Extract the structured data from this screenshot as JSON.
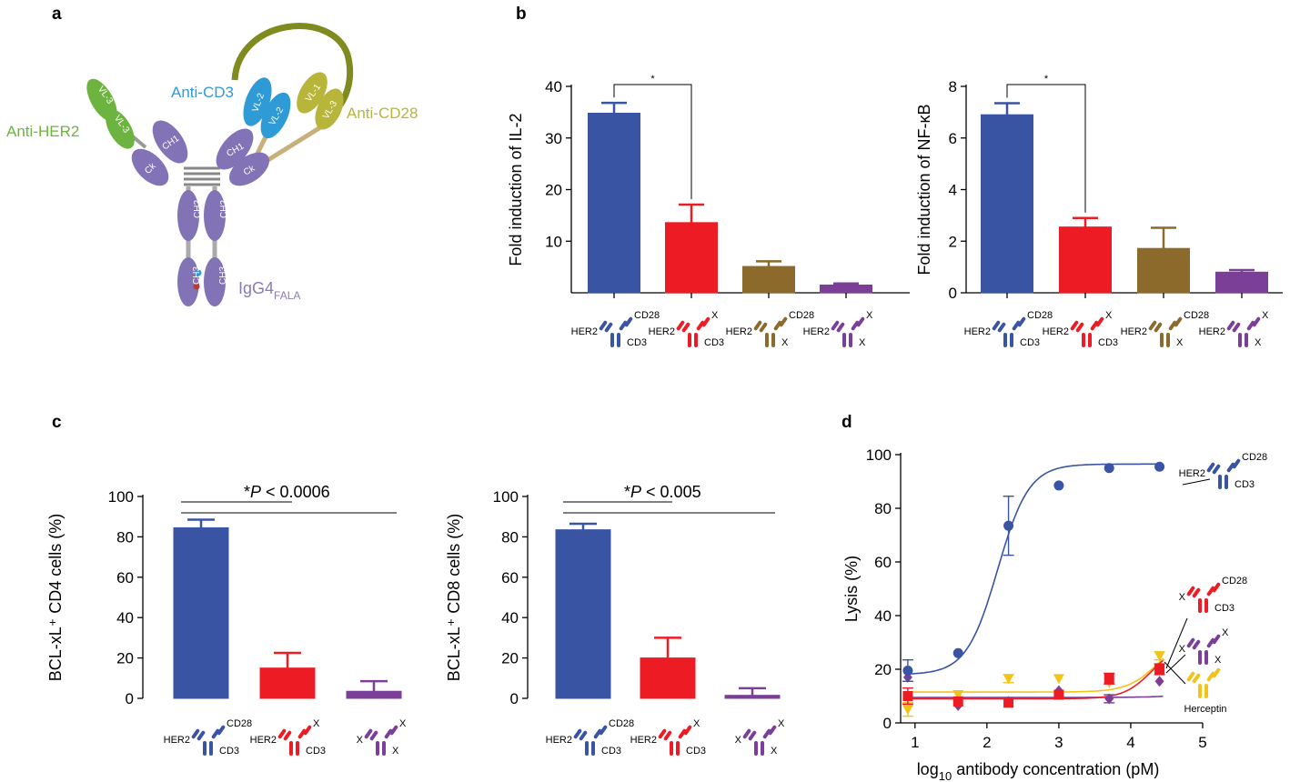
{
  "panel_labels": {
    "a": "a",
    "b": "b",
    "c": "c",
    "d": "d"
  },
  "colors": {
    "blue": "#3a54a4",
    "red": "#ed1c24",
    "brown": "#8b6a2b",
    "purple": "#7b3f98",
    "yellow": "#f2c418",
    "green": "#6db33f",
    "lightblue": "#2f9bd6",
    "olive": "#b7b53a",
    "domain": "#8173b5",
    "ig_label": "#8a7ab8"
  },
  "schematic": {
    "anti_her2": "Anti-HER2",
    "anti_cd3": "Anti-CD3",
    "anti_cd28": "Anti-CD28",
    "igg4_main": "IgG4",
    "igg4_sub": "FALA",
    "domains": {
      "vl3": "VL-3",
      "ch1": "CH1",
      "ck": "Ck",
      "vl2": "VL-2",
      "vl1": "VL-1",
      "ch2": "CH2",
      "ch3": "CH3"
    }
  },
  "legend_icons": {
    "her2": "HER2",
    "cd28": "CD28",
    "cd3": "CD3",
    "x": "X",
    "herceptin": "Herceptin"
  },
  "chart_data": [
    {
      "id": "il2",
      "type": "bar",
      "panel": "b",
      "ylabel": "Fold induction of IL-2",
      "ylim": [
        0,
        40
      ],
      "yticks": [
        10,
        20,
        30,
        40
      ],
      "categories": [
        "HER2/CD28/CD3",
        "HER2/X/CD3",
        "HER2/CD28/X",
        "HER2/X/X"
      ],
      "values": [
        34.8,
        13.6,
        5.1,
        1.5
      ],
      "errors": [
        2.0,
        3.5,
        1.0,
        0.3
      ],
      "bar_colors": [
        "#3a54a4",
        "#ed1c24",
        "#8b6a2b",
        "#7b3f98"
      ],
      "significance": "*"
    },
    {
      "id": "nfkb",
      "type": "bar",
      "panel": "b",
      "ylabel": "Fold induction of NF-κB",
      "ylim": [
        0,
        8
      ],
      "yticks": [
        0,
        2,
        4,
        6,
        8
      ],
      "categories": [
        "HER2/CD28/CD3",
        "HER2/X/CD3",
        "HER2/CD28/X",
        "HER2/X/X"
      ],
      "values": [
        6.9,
        2.55,
        1.72,
        0.8
      ],
      "errors": [
        0.45,
        0.35,
        0.8,
        0.08
      ],
      "bar_colors": [
        "#3a54a4",
        "#ed1c24",
        "#8b6a2b",
        "#7b3f98"
      ],
      "significance": "*"
    },
    {
      "id": "cd4",
      "type": "bar",
      "panel": "c",
      "ylabel": "BCL-xL⁺ CD4 cells (%)",
      "ylim": [
        0,
        100
      ],
      "yticks": [
        0,
        20,
        40,
        60,
        80,
        100
      ],
      "categories": [
        "HER2/CD28/CD3",
        "HER2/X/CD3",
        "X/X/X"
      ],
      "values": [
        84.5,
        15,
        3.5
      ],
      "errors": [
        4,
        7.5,
        5
      ],
      "bar_colors": [
        "#3a54a4",
        "#ed1c24",
        "#7b3f98"
      ],
      "significance_prefix": "*",
      "significance_italic": "P",
      "significance_rest": " < 0.0006"
    },
    {
      "id": "cd8",
      "type": "bar",
      "panel": "c",
      "ylabel": "BCL-xL⁺ CD8 cells (%)",
      "ylim": [
        0,
        100
      ],
      "yticks": [
        0,
        20,
        40,
        60,
        80,
        100
      ],
      "categories": [
        "HER2/CD28/CD3",
        "HER2/X/CD3",
        "X/X/X"
      ],
      "values": [
        83.5,
        20,
        1.5
      ],
      "errors": [
        3,
        10,
        3.5
      ],
      "bar_colors": [
        "#3a54a4",
        "#ed1c24",
        "#7b3f98"
      ],
      "significance_prefix": "*",
      "significance_italic": "P",
      "significance_rest": " < 0.005"
    },
    {
      "id": "lysis",
      "type": "scatter",
      "panel": "d",
      "ylabel": "Lysis (%)",
      "xlabel_main": "log",
      "xlabel_sub": "10",
      "xlabel_rest": " antibody concentration (pM)",
      "xlim": [
        0.8,
        5
      ],
      "ylim": [
        0,
        100
      ],
      "xticks": [
        1,
        2,
        3,
        4,
        5
      ],
      "yticks": [
        0,
        20,
        40,
        60,
        80,
        100
      ],
      "series": [
        {
          "name": "HER2/CD28/CD3",
          "color": "#3a54a4",
          "marker": "circle",
          "x": [
            0.9,
            1.6,
            2.3,
            3.0,
            3.7,
            4.4
          ],
          "y": [
            19.5,
            26,
            73.5,
            88.5,
            95,
            95.5
          ],
          "err": [
            4,
            0,
            11,
            0,
            0,
            0
          ],
          "curve": {
            "bottom": 18,
            "top": 96.5,
            "ec50": 2.15,
            "hill": 2.0
          }
        },
        {
          "name": "X/CD28/CD3",
          "color": "#ed1c24",
          "marker": "square",
          "x": [
            0.9,
            1.6,
            2.3,
            3.0,
            3.7,
            4.4
          ],
          "y": [
            10,
            8,
            7.5,
            10.5,
            16.5,
            20
          ],
          "err": [
            3,
            0,
            0,
            0,
            2,
            2
          ],
          "curve": {
            "bottom": 9,
            "top": 30,
            "ec50": 4.3,
            "hill": 2.2
          }
        },
        {
          "name": "X/X/X",
          "color": "#7b3f98",
          "marker": "diamond",
          "x": [
            0.9,
            1.6,
            2.3,
            3.0,
            3.7,
            4.4
          ],
          "y": [
            17,
            6.5,
            8,
            12,
            9,
            15.5
          ],
          "err": [
            0,
            0,
            0,
            0,
            1.5,
            0
          ],
          "curve": {
            "bottom": 9.5,
            "top": 40,
            "ec50": 5.6,
            "hill": 1.6
          }
        },
        {
          "name": "Herceptin",
          "color": "#f2c418",
          "marker": "triangle",
          "x": [
            0.9,
            1.6,
            2.3,
            3.0,
            3.7,
            4.4
          ],
          "y": [
            5,
            10.5,
            16.5,
            16.5,
            15,
            25
          ],
          "err": [
            2.5,
            0,
            1.5,
            0,
            0,
            1.5
          ],
          "curve": {
            "bottom": 11.5,
            "top": 34,
            "ec50": 4.4,
            "hill": 2.0
          }
        }
      ]
    }
  ]
}
